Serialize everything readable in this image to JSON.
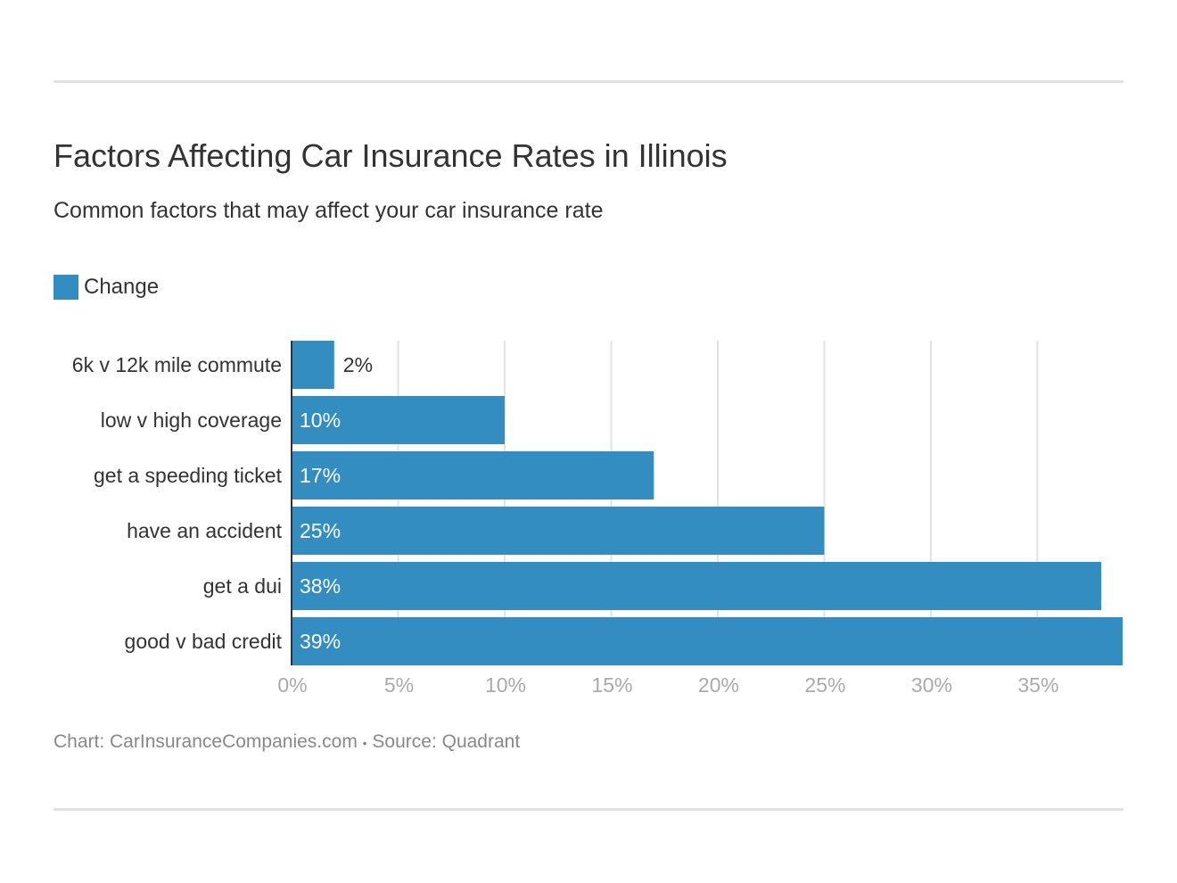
{
  "title": "Factors Affecting Car Insurance Rates in Illinois",
  "subtitle": "Common factors that may affect your car insurance rate",
  "footer": {
    "chart_credit": "Chart: CarInsuranceCompanies.com",
    "separator": "•",
    "source": "Source: Quadrant"
  },
  "chart_data": {
    "type": "bar",
    "orientation": "horizontal",
    "categories": [
      "6k v 12k mile commute",
      "low v high coverage",
      "get a speeding ticket",
      "have an accident",
      "get a dui",
      "good v bad credit"
    ],
    "series": [
      {
        "name": "Change",
        "values": [
          2,
          10,
          17,
          25,
          38,
          39
        ],
        "color": "#348dc1"
      }
    ],
    "data_labels": [
      "2%",
      "10%",
      "17%",
      "25%",
      "38%",
      "39%"
    ],
    "x_ticks": [
      0,
      5,
      10,
      15,
      20,
      25,
      30,
      35
    ],
    "x_tick_labels": [
      "0%",
      "5%",
      "10%",
      "15%",
      "20%",
      "25%",
      "30%",
      "35%"
    ],
    "xlim": [
      0,
      39
    ],
    "grid": true,
    "legend": "top-left"
  }
}
